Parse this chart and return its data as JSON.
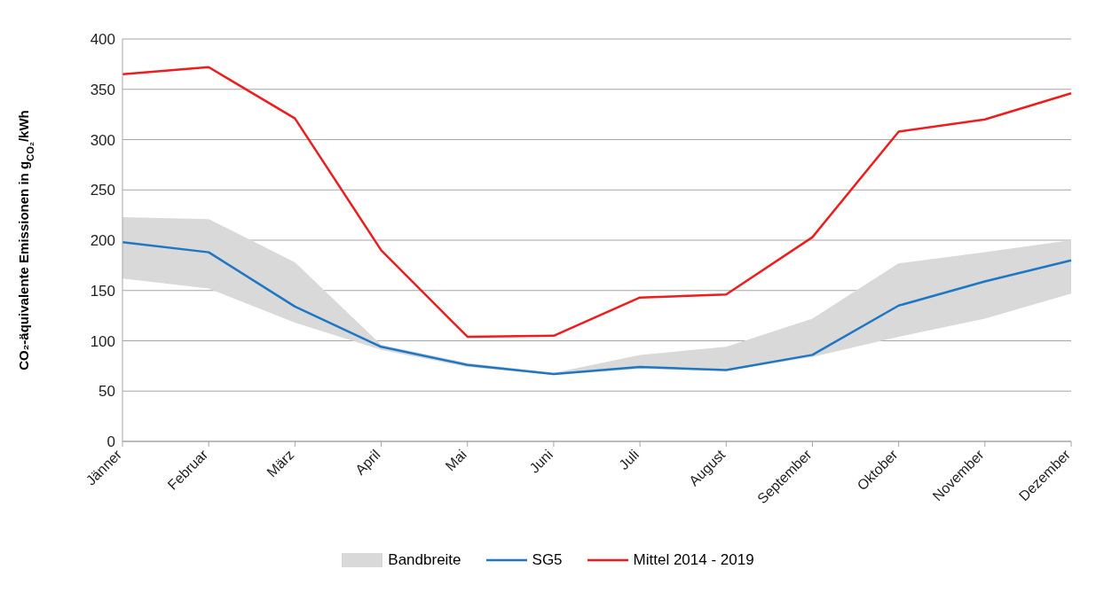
{
  "chart_data": {
    "type": "line",
    "ylabel": "CO₂-äquivalente Emissionen in g$_{CO₂}$/kWh",
    "categories": [
      "Jänner",
      "Februar",
      "März",
      "April",
      "Mai",
      "Juni",
      "Juli",
      "August",
      "September",
      "Oktober",
      "November",
      "Dezember"
    ],
    "series": [
      {
        "name": "SG5",
        "color": "#1f77c4",
        "values": [
          198,
          188,
          134,
          94,
          76,
          67,
          74,
          71,
          86,
          135,
          159,
          180
        ],
        "lower": [
          162,
          152,
          118,
          91,
          74,
          66,
          72,
          70,
          84,
          104,
          122,
          147
        ],
        "upper": [
          223,
          221,
          178,
          96,
          78,
          68,
          86,
          94,
          122,
          177,
          188,
          200
        ]
      },
      {
        "name": "Mittel 2014 - 2019",
        "color": "#ee1c1c",
        "values": [
          365,
          372,
          321,
          190,
          104,
          105,
          143,
          146,
          203,
          308,
          320,
          346
        ]
      }
    ],
    "annotations": [
      "Bandbreite"
    ],
    "ylim": [
      0,
      400
    ],
    "yticks": [
      0,
      50,
      100,
      150,
      200,
      250,
      300,
      350,
      400
    ],
    "grid": "y",
    "legend": "bottom",
    "marker": "none",
    "line_style": "solid"
  }
}
